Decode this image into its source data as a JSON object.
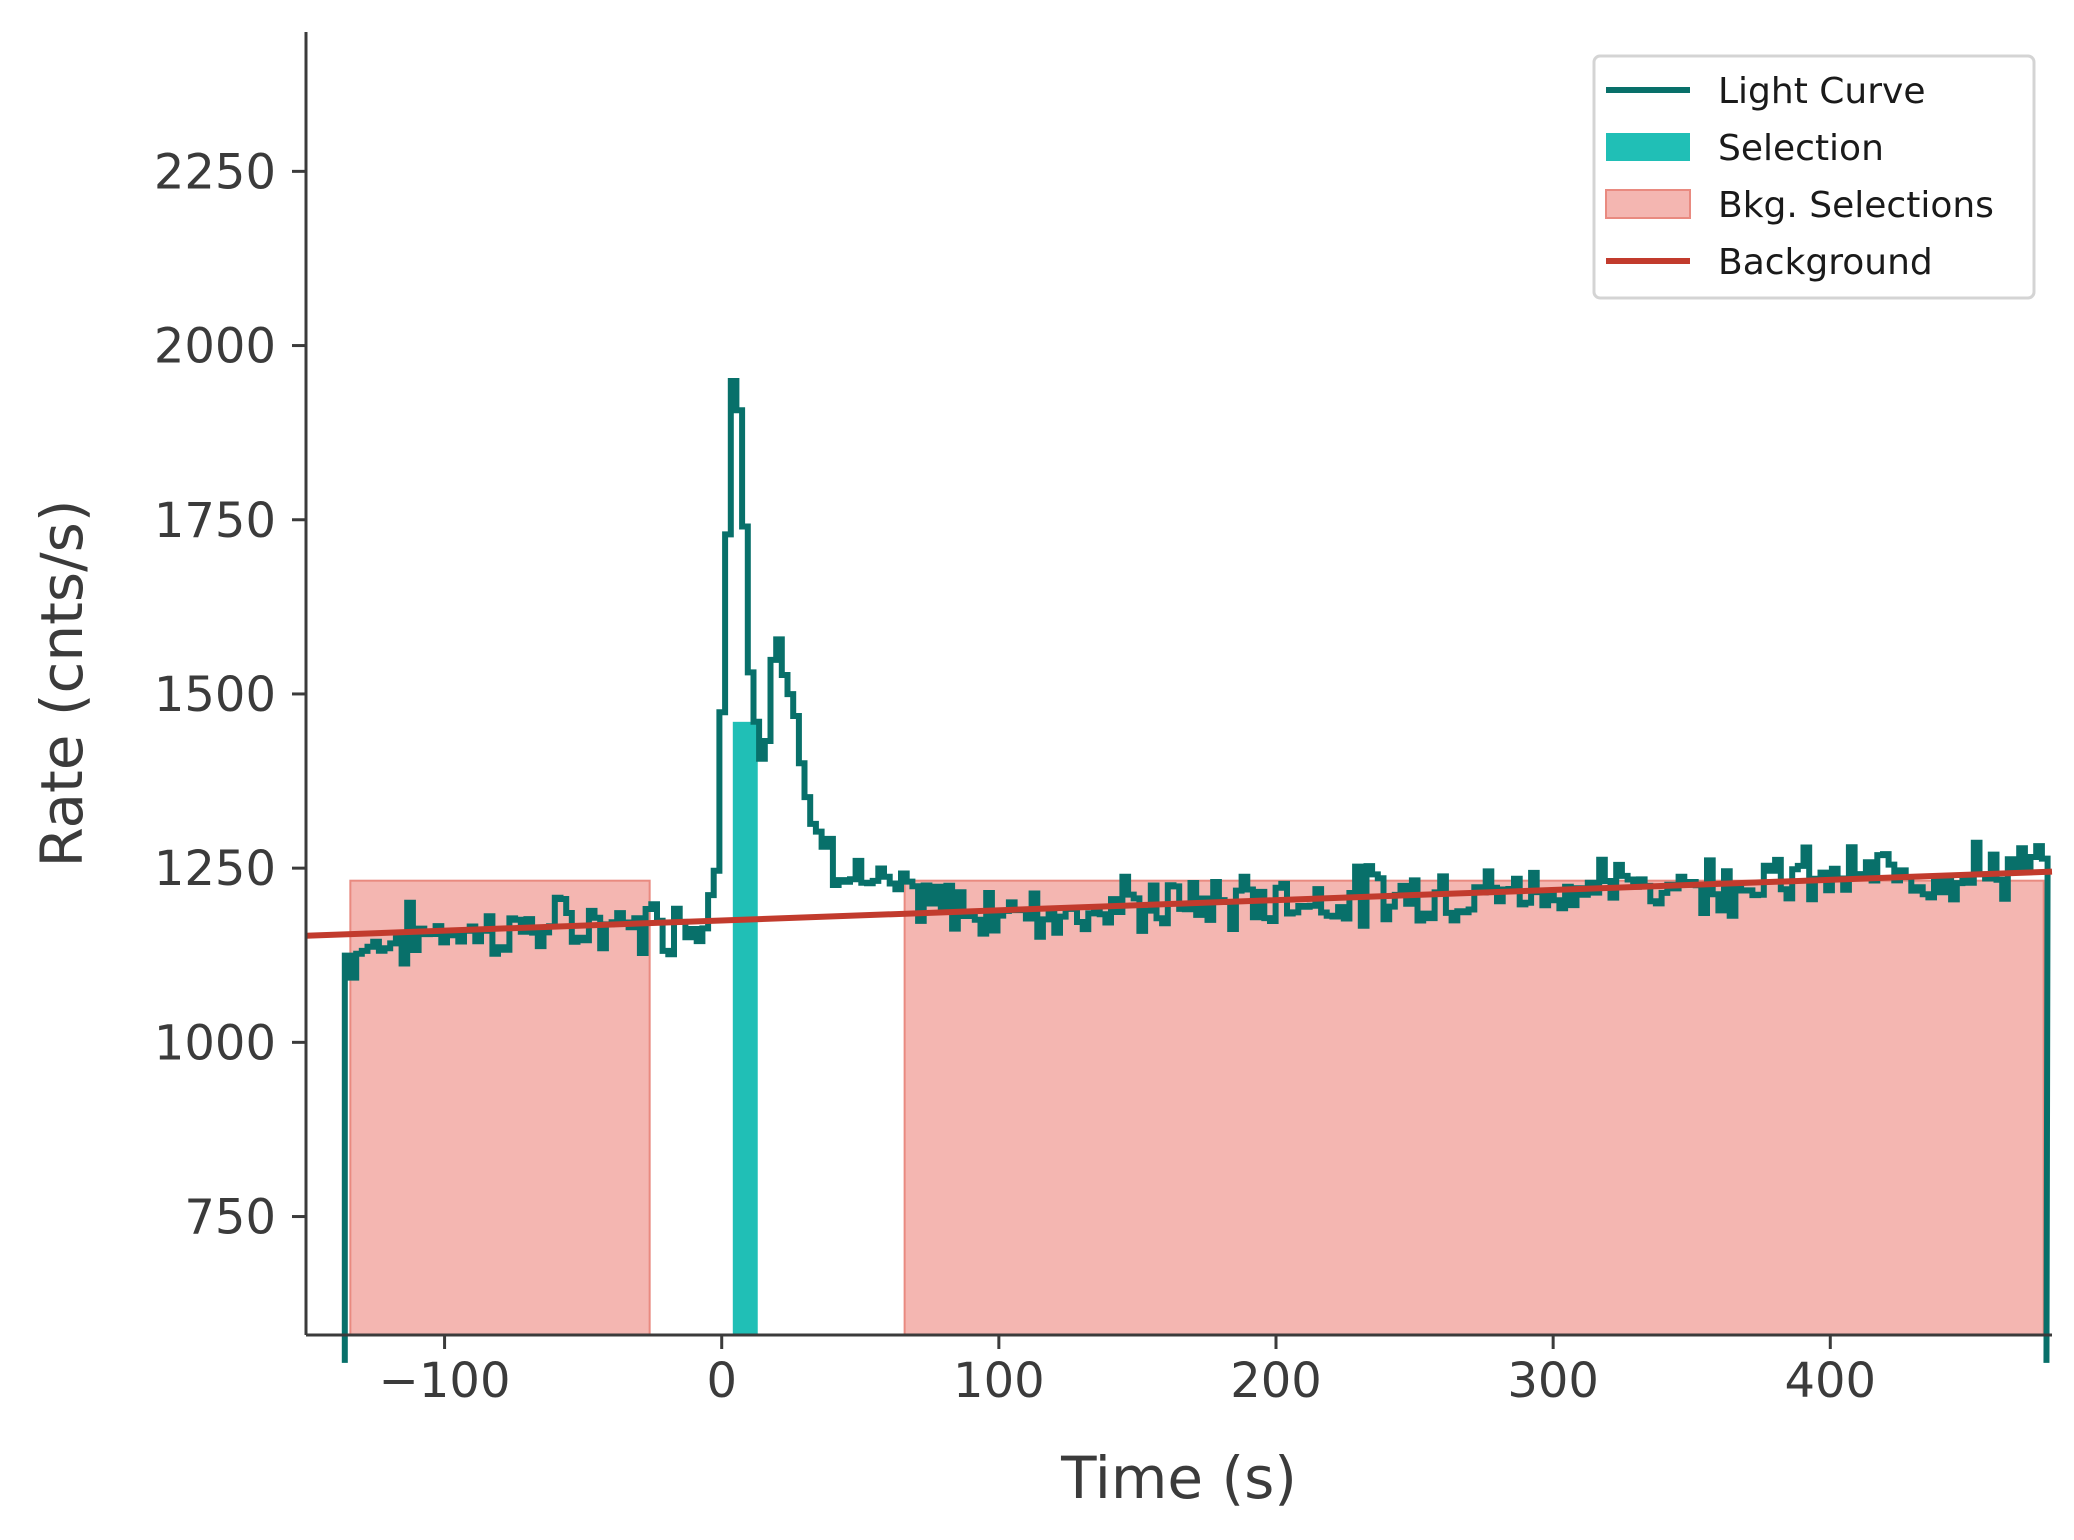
{
  "chart_data": {
    "type": "line",
    "title": "",
    "xlabel": "Time (s)",
    "ylabel": "Rate (cnts/s)",
    "xlim": [
      -150,
      480
    ],
    "ylim": [
      580,
      2450
    ],
    "x_ticks": [
      -100,
      0,
      100,
      200,
      300,
      400
    ],
    "x_tick_labels": [
      "−100",
      "0",
      "100",
      "200",
      "300",
      "400"
    ],
    "y_ticks": [
      750,
      1000,
      1250,
      1500,
      1750,
      2000,
      2250
    ],
    "y_tick_labels": [
      "750",
      "1000",
      "1250",
      "1500",
      "1750",
      "2000",
      "2250"
    ],
    "grid": false,
    "legend_position": "top-right",
    "legend": [
      {
        "label": "Light Curve",
        "kind": "line",
        "color": "#08706a"
      },
      {
        "label": "Selection",
        "kind": "patch",
        "color": "#20bfb6"
      },
      {
        "label": "Bkg. Selections",
        "kind": "patch",
        "color": "#f4b6b1",
        "edge": "#e98a80"
      },
      {
        "label": "Background",
        "kind": "line",
        "color": "#c23b2d"
      }
    ],
    "light_curve": {
      "name": "Light Curve",
      "color": "#08706a",
      "bin_width": 2.048,
      "start": -136,
      "end": 478,
      "anchors": [
        [
          -136,
          1120
        ],
        [
          -120,
          1150
        ],
        [
          -100,
          1160
        ],
        [
          -80,
          1160
        ],
        [
          -60,
          1165
        ],
        [
          -40,
          1168
        ],
        [
          -20,
          1172
        ],
        [
          -8,
          1175
        ],
        [
          -4,
          1200
        ],
        [
          -1,
          1280
        ],
        [
          0,
          1480
        ],
        [
          1,
          1500
        ],
        [
          2,
          1720
        ],
        [
          3,
          1820
        ],
        [
          3.5,
          2040
        ],
        [
          5,
          1860
        ],
        [
          6,
          1980
        ],
        [
          7,
          1800
        ],
        [
          8,
          1820
        ],
        [
          9,
          1620
        ],
        [
          10,
          1560
        ],
        [
          11,
          1520
        ],
        [
          12,
          1480
        ],
        [
          13,
          1440
        ],
        [
          15,
          1400
        ],
        [
          17,
          1460
        ],
        [
          19,
          1560
        ],
        [
          20,
          1610
        ],
        [
          22,
          1520
        ],
        [
          24,
          1520
        ],
        [
          26,
          1480
        ],
        [
          28,
          1420
        ],
        [
          30,
          1360
        ],
        [
          33,
          1320
        ],
        [
          36,
          1300
        ],
        [
          40,
          1275
        ],
        [
          45,
          1250
        ],
        [
          52,
          1230
        ],
        [
          60,
          1215
        ],
        [
          70,
          1200
        ],
        [
          90,
          1190
        ],
        [
          120,
          1190
        ],
        [
          200,
          1205
        ],
        [
          300,
          1220
        ],
        [
          400,
          1237
        ],
        [
          478,
          1250
        ]
      ],
      "noise": 32,
      "seed": 7
    },
    "selection": {
      "name": "Selection",
      "x": [
        4,
        13
      ],
      "color": "#20bfb6"
    },
    "bkg_selections": {
      "name": "Bkg. Selections",
      "intervals": [
        [
          -134,
          -26
        ],
        [
          66,
          477
        ]
      ],
      "color": "#f4b6b1",
      "edge": "#e98a80"
    },
    "background": {
      "name": "Background",
      "x": [
        -150,
        480
      ],
      "y": [
        1153,
        1245
      ],
      "color": "#c23b2d"
    }
  }
}
